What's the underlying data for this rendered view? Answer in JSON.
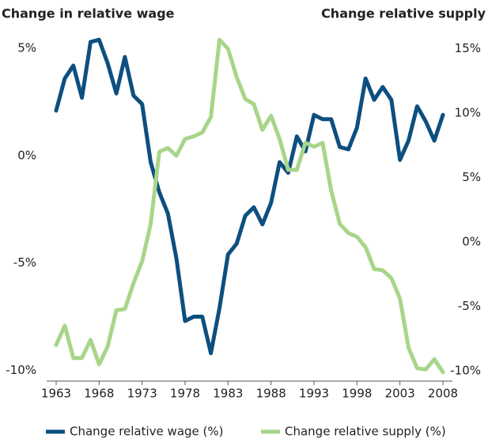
{
  "chart_data": {
    "type": "line",
    "y_label": "Change in relative wage",
    "y2_label": "Change relative supply",
    "x": [
      1963,
      1964,
      1965,
      1966,
      1967,
      1968,
      1969,
      1970,
      1971,
      1972,
      1973,
      1974,
      1975,
      1976,
      1977,
      1978,
      1979,
      1980,
      1981,
      1982,
      1983,
      1984,
      1985,
      1986,
      1987,
      1988,
      1989,
      1990,
      1991,
      1992,
      1993,
      1994,
      1995,
      1996,
      1997,
      1998,
      1999,
      2000,
      2001,
      2002,
      2003,
      2004,
      2005,
      2006,
      2007,
      2008
    ],
    "xlim": [
      1963,
      2008
    ],
    "xticks": [
      1963,
      1968,
      1973,
      1978,
      1983,
      1988,
      1993,
      1998,
      2003,
      2008
    ],
    "ylim": [
      -10.5,
      6
    ],
    "yticks": [
      {
        "value": 5,
        "label": "5%"
      },
      {
        "value": 0,
        "label": "0%"
      },
      {
        "value": -5,
        "label": "-5%"
      },
      {
        "value": -10,
        "label": "-10%"
      }
    ],
    "y2lim": [
      -10.8,
      16.7
    ],
    "y2ticks": [
      {
        "value": 15,
        "label": "15%"
      },
      {
        "value": 10,
        "label": "10%"
      },
      {
        "value": 5,
        "label": "5%"
      },
      {
        "value": 0,
        "label": "0%"
      },
      {
        "value": -5,
        "label": "-5%"
      },
      {
        "value": -10,
        "label": "-10%"
      }
    ],
    "legend": "bottom",
    "series": [
      {
        "name": "Change relative wage (%)",
        "color": "#0d4f80",
        "values": [
          2.1,
          3.6,
          4.2,
          2.7,
          5.3,
          5.4,
          4.3,
          2.9,
          4.6,
          2.8,
          2.4,
          -0.3,
          -1.7,
          -2.7,
          -4.8,
          -7.7,
          -7.5,
          -7.5,
          -9.2,
          -7.1,
          -4.6,
          -4.1,
          -2.8,
          -2.4,
          -3.2,
          -2.2,
          -0.3,
          -0.8,
          0.9,
          0.2,
          1.9,
          1.7,
          1.7,
          0.4,
          0.3,
          1.3,
          3.6,
          2.6,
          3.2,
          2.6,
          -0.2,
          0.7,
          2.3,
          1.6,
          0.7,
          1.9
        ]
      },
      {
        "name": "Change relative supply (%)",
        "color": "#a8d58a",
        "axis": "y2",
        "values": [
          -8.0,
          -6.5,
          -9.0,
          -9.0,
          -7.6,
          -9.5,
          -8.1,
          -5.3,
          -5.2,
          -3.2,
          -1.5,
          1.4,
          7.0,
          7.3,
          6.7,
          8.0,
          8.2,
          8.5,
          9.7,
          15.7,
          15.0,
          12.8,
          11.1,
          10.7,
          8.7,
          9.8,
          8.0,
          5.6,
          5.6,
          7.7,
          7.4,
          7.7,
          4.0,
          1.4,
          0.7,
          0.4,
          -0.4,
          -2.1,
          -2.2,
          -2.8,
          -4.4,
          -8.2,
          -9.8,
          -9.9,
          -9.1,
          -10.1
        ]
      }
    ]
  }
}
